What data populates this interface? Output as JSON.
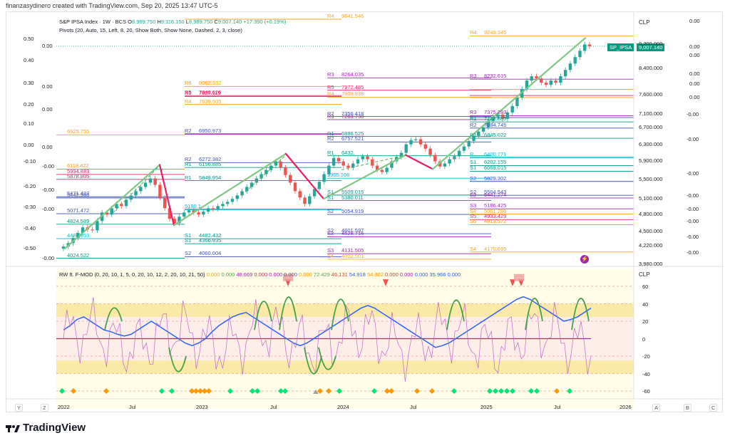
{
  "header": {
    "credit": "finanzasydinero created with TradingView.com, Sep 20, 2025 13:47 UTC-5"
  },
  "legend": {
    "symbol": "S&P IPSA Index · 1W · BCS",
    "ohlc": [
      {
        "key": "O",
        "value": "8,989.750"
      },
      {
        "key": "H",
        "value": "9,116.150"
      },
      {
        "key": "L",
        "value": "8,989.750"
      },
      {
        "key": "C",
        "value": "9,007.140"
      }
    ],
    "change": "+17.390 (+0.19%)",
    "pivots": "Pivots (20, Auto, 15, Left, 8, 20, Show Both, Show None, Dashed, 2, 3, close)",
    "colors": {
      "up": "#26a69a",
      "down": "#ef5350"
    }
  },
  "currency": "CLP",
  "price_axis": [
    "9,200.000",
    "8,400.000",
    "7,600.000",
    "7,100.000",
    "6,700.000",
    "6,300.000",
    "5,900.000",
    "5,500.000",
    "5,100.000",
    "4,800.000",
    "4,500.000",
    "4,220.000",
    "3,980.000"
  ],
  "price_badge": {
    "symbol": "SP_IPSA",
    "value": "9,007.140",
    "color": "#089981"
  },
  "left_axis": [
    "0.50",
    "0.40",
    "0.30",
    "0.20",
    "0.10",
    "0.00",
    "-0.10",
    "-0.20",
    "-0.30",
    "-0.40",
    "-0.50"
  ],
  "left_axis2": [
    "0.00",
    "0.00",
    "0.00",
    "0.00",
    "-0.00",
    "-0.00",
    "-0.00",
    "-0.00"
  ],
  "right_axis2": [
    "0.00",
    "0.00",
    "0.00",
    "0.00",
    "0.00",
    "0.00",
    "-0.00",
    "-0.00",
    "-0.00",
    "-0.00",
    "-0.00",
    "-0.00",
    "-0.00",
    "-0.00"
  ],
  "pivot_labels": [
    {
      "t": "R4",
      "v": "9641.546",
      "c": "#f5a623"
    },
    {
      "t": "R4",
      "v": "9249.345",
      "c": "#f5a623"
    },
    {
      "t": "R3",
      "v": "8264.035",
      "c": "#9c27b0"
    },
    {
      "t": "R3",
      "v": "8232.615",
      "c": "#9c27b0"
    },
    {
      "t": "R6",
      "v": "8062.332",
      "c": "#ff9800"
    },
    {
      "t": "R5",
      "v": "7972.485",
      "c": "#e91e63"
    },
    {
      "t": "R5",
      "v": "7848.626",
      "c": "#e91e63"
    },
    {
      "t": "R5",
      "v": "7827.119",
      "c": "#e91e63"
    },
    {
      "t": "R4",
      "v": "7809.939",
      "c": "#f5a623"
    },
    {
      "t": "R4",
      "v": "7639.905",
      "c": "#f5a623"
    },
    {
      "t": "R2",
      "v": "7356.418",
      "c": "#3f51b5"
    },
    {
      "t": "R3",
      "v": "7283.730",
      "c": "#9c27b0"
    },
    {
      "t": "R3",
      "v": "7375.283",
      "c": "#9c27b0"
    },
    {
      "t": "R1",
      "v": "7228.885",
      "c": "#009688"
    },
    {
      "t": "R2",
      "v": "7084.745",
      "c": "#3f51b5"
    },
    {
      "t": "R2",
      "v": "6950.973",
      "c": "#3f51b5"
    },
    {
      "t": "",
      "v": "6925.755",
      "c": "#f5a623"
    },
    {
      "t": "R1",
      "v": "6886.525",
      "c": "#009688"
    },
    {
      "t": "R1",
      "v": "6845.022",
      "c": "#009688"
    },
    {
      "t": "R2",
      "v": "6757.521",
      "c": "#3f51b5"
    },
    {
      "t": "R1",
      "v": "6432.",
      "c": "#009688"
    },
    {
      "t": "R",
      "v": "6400.771",
      "c": "#00bcd4"
    },
    {
      "t": "R2",
      "v": "6272.382",
      "c": "#3f51b5"
    },
    {
      "t": "R1",
      "v": "6156.885",
      "c": "#009688"
    },
    {
      "t": "S1",
      "v": "6202.155",
      "c": "#009688"
    },
    {
      "t": "",
      "v": "6118.422",
      "c": "#ff9800"
    },
    {
      "t": "S1",
      "v": "6069.015",
      "c": "#009688"
    },
    {
      "t": "",
      "v": "5994.883",
      "c": "#e91e63"
    },
    {
      "t": "",
      "v": "5878.805",
      "c": "#e91e63"
    },
    {
      "t": "R1",
      "v": "5849.954",
      "c": "#009688"
    },
    {
      "t": "",
      "v": "5905.108",
      "c": "#00bcd4"
    },
    {
      "t": "S2",
      "v": "5829.302",
      "c": "#3f51b5"
    },
    {
      "t": "",
      "v": "5471.487",
      "c": "#3f51b5"
    },
    {
      "t": "",
      "v": "5442.988",
      "c": "#3f51b5"
    },
    {
      "t": "S1",
      "v": "5509.015",
      "c": "#009688"
    },
    {
      "t": "S1",
      "v": "5380.011",
      "c": "#009688"
    },
    {
      "t": "S2",
      "v": "5504.543",
      "c": "#3f51b5"
    },
    {
      "t": "S3",
      "v": "5441.274",
      "c": "#9c27b0"
    },
    {
      "t": "S3",
      "v": "5186.425",
      "c": "#9c27b0"
    },
    {
      "t": "",
      "v": "5180.1",
      "c": "#00bcd4"
    },
    {
      "t": "",
      "v": "5071.472",
      "c": "#3f51b5"
    },
    {
      "t": "S2",
      "v": "5054.919",
      "c": "#3f51b5"
    },
    {
      "t": "S4",
      "v": "5061.286",
      "c": "#f5a623"
    },
    {
      "t": "S5",
      "v": "4933.429",
      "c": "#e91e63"
    },
    {
      "t": "",
      "v": "4824.589",
      "c": "#009688"
    },
    {
      "t": "S6",
      "v": "4813.572",
      "c": "#ff9800"
    },
    {
      "t": "S2",
      "v": "4601.597",
      "c": "#3f51b5"
    },
    {
      "t": "S3",
      "v": "4528.716",
      "c": "#9c27b0"
    },
    {
      "t": "S1",
      "v": "4482.432",
      "c": "#009688"
    },
    {
      "t": "",
      "v": "4485.853",
      "c": "#00bcd4"
    },
    {
      "t": "S1",
      "v": "4366.935",
      "c": "#009688"
    },
    {
      "t": "S4",
      "v": "4170.695",
      "c": "#f5a623"
    },
    {
      "t": "S3",
      "v": "4131.505",
      "c": "#9c27b0"
    },
    {
      "t": "S2",
      "v": "4060.004",
      "c": "#3f51b5"
    },
    {
      "t": "",
      "v": "4024.522",
      "c": "#009688"
    },
    {
      "t": "S4",
      "v": "4002.501",
      "c": "#f5a623"
    }
  ],
  "osc": {
    "title": "RW ft. F-MOD (0, 20, 10, 1, 5, 0, 20, 10, 12, 2, 20, 10, 21, 50)",
    "values": [
      {
        "v": "0.000",
        "c": "#f5a623"
      },
      {
        "v": "0.000",
        "c": "#4caf50"
      },
      {
        "v": "48.669",
        "c": "#9c27b0"
      },
      {
        "v": "0.000",
        "c": "#e91e63"
      },
      {
        "v": "0.000",
        "c": "#9c27b0"
      },
      {
        "v": "0.000",
        "c": "#3f51b5"
      },
      {
        "v": "0.000",
        "c": "#ff9800"
      },
      {
        "v": "72.429",
        "c": "#4caf50"
      },
      {
        "v": "46.131",
        "c": "#e53935"
      },
      {
        "v": "54.918",
        "c": "#2962ff"
      },
      {
        "v": "54.802",
        "c": "#ff9800"
      },
      {
        "v": "0.000",
        "c": "#e53935"
      },
      {
        "v": "0.000",
        "c": "#9c27b0"
      },
      {
        "v": "0.000",
        "c": "#2962ff"
      },
      {
        "v": "35.966",
        "c": "#2962ff"
      },
      {
        "v": "0.000",
        "c": "#2962ff"
      }
    ],
    "axis": [
      "60",
      "40",
      "20",
      "0",
      "-20",
      "-40",
      "-60"
    ],
    "currency": "CLP"
  },
  "time_axis": [
    "2022",
    "Jul",
    "2023",
    "Jul",
    "2024",
    "Jul",
    "2025",
    "Jul",
    "2026"
  ],
  "corner_buttons": {
    "y": "Y",
    "z": "Z",
    "a": "A",
    "b": "B",
    "c": "C"
  },
  "footer": {
    "brand": "TradingView"
  }
}
